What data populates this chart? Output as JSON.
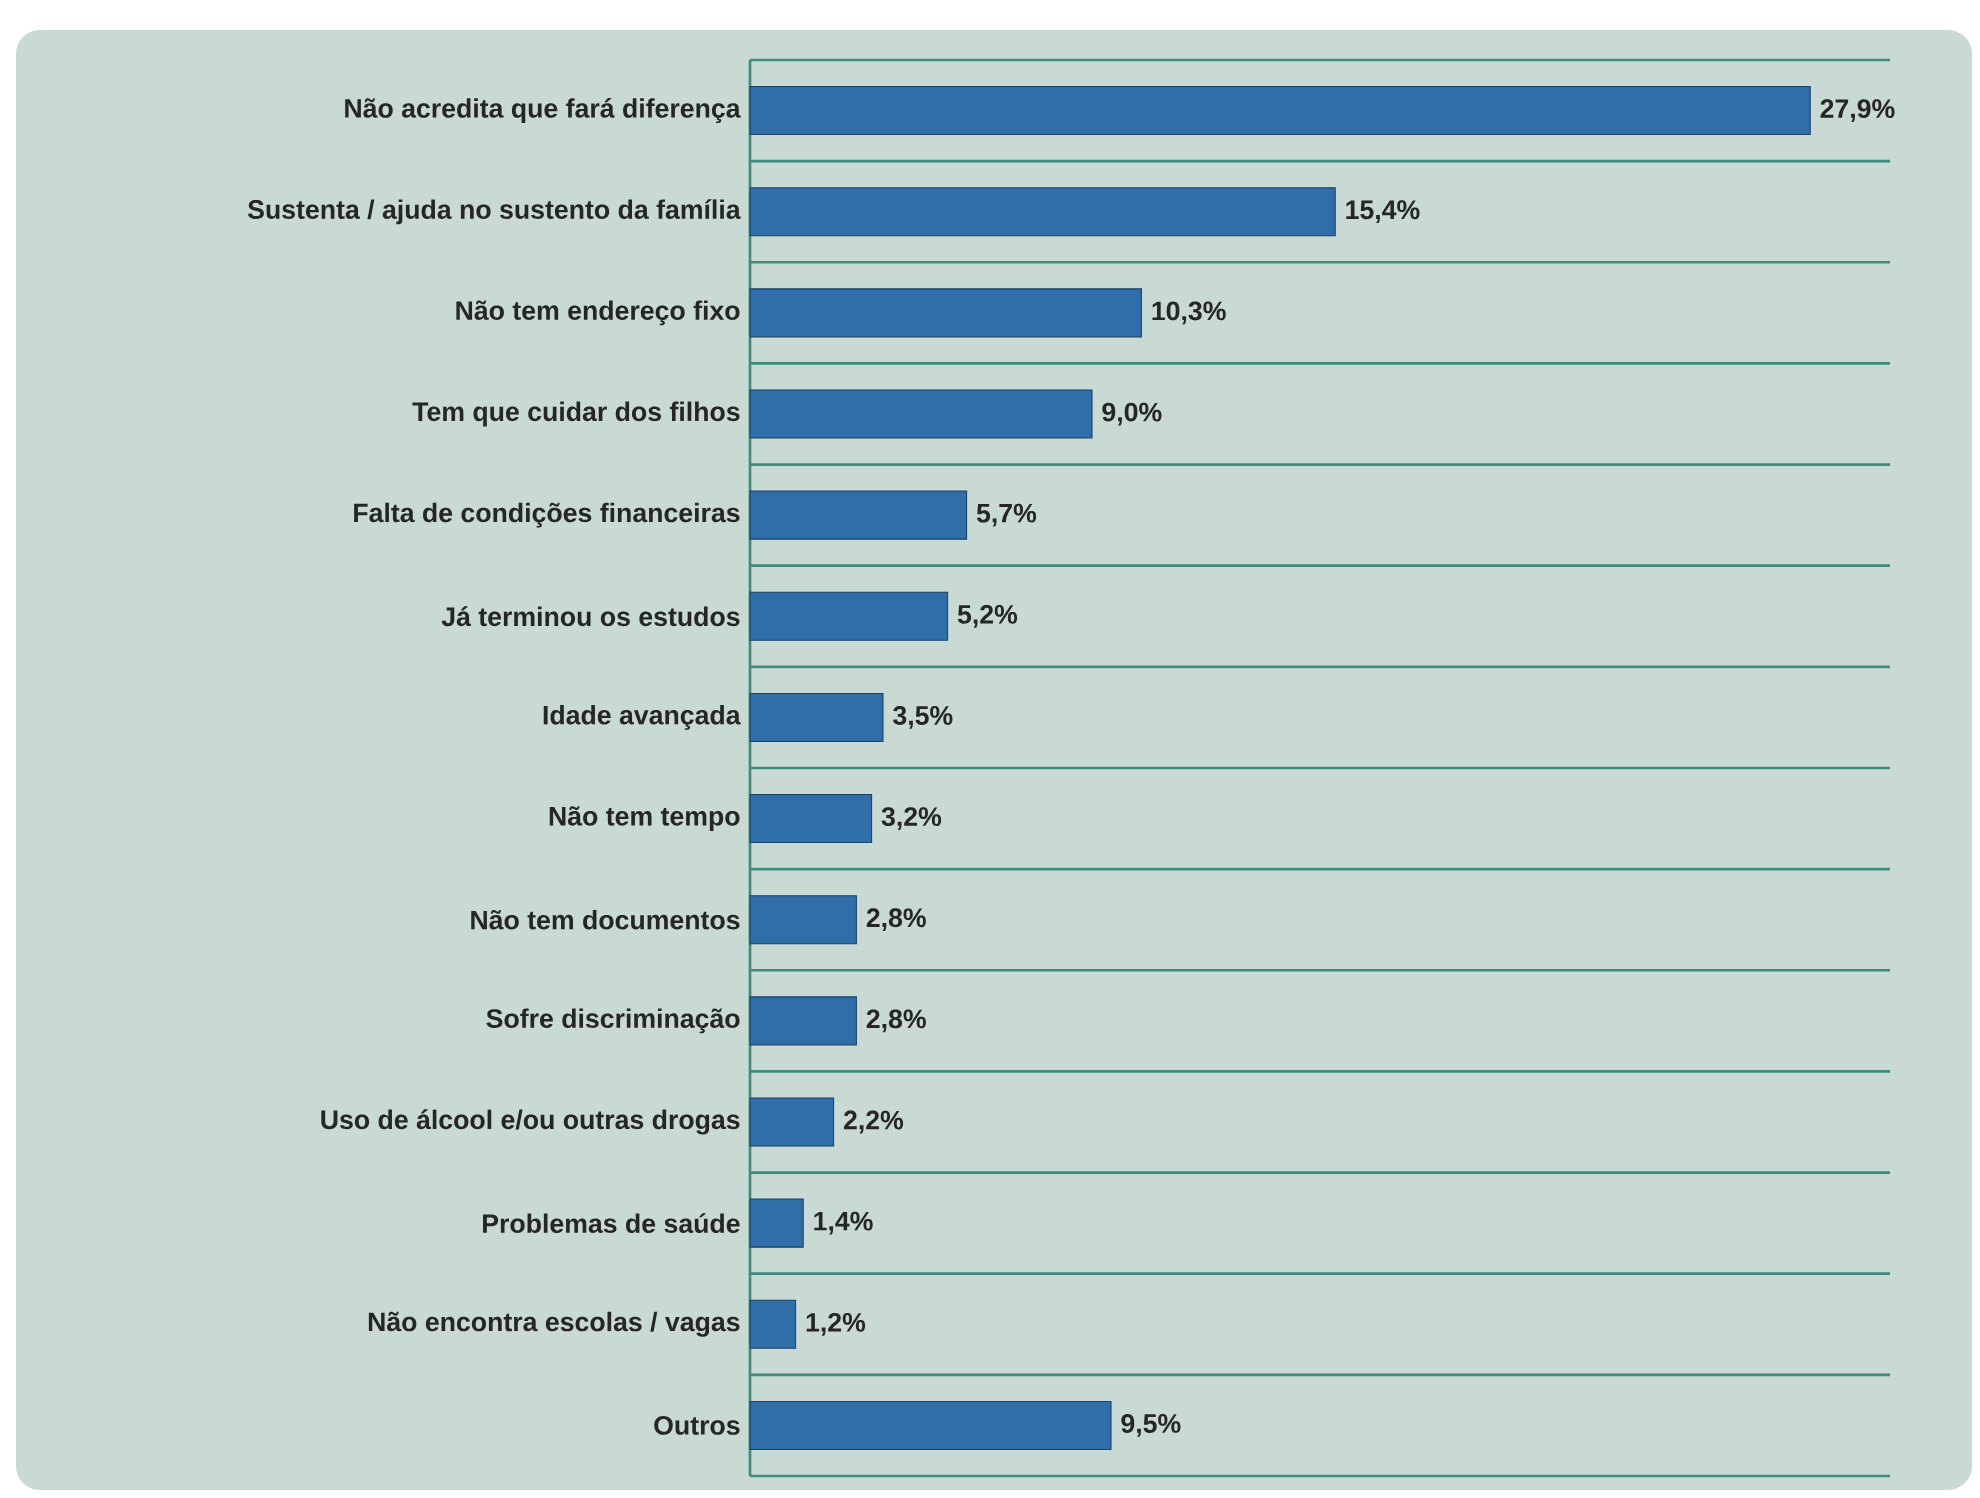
{
  "chart_data": {
    "type": "bar",
    "orientation": "horizontal",
    "categories": [
      "Não acredita que fará diferença",
      "Sustenta / ajuda no sustento da família",
      "Não tem endereço fixo",
      "Tem que cuidar dos filhos",
      "Falta de condições financeiras",
      "Já terminou os estudos",
      "Idade avançada",
      "Não tem tempo",
      "Não tem documentos",
      "Sofre discriminação",
      "Uso de álcool e/ou outras drogas",
      "Problemas de saúde",
      "Não encontra escolas / vagas",
      "Outros"
    ],
    "values": [
      27.9,
      15.4,
      10.3,
      9.0,
      5.7,
      5.2,
      3.5,
      3.2,
      2.8,
      2.8,
      2.2,
      1.4,
      1.2,
      9.5
    ],
    "value_labels": [
      "27,9%",
      "15,4%",
      "10,3%",
      "9,0%",
      "5,7%",
      "5,2%",
      "3,5%",
      "3,2%",
      "2,8%",
      "2,8%",
      "2,2%",
      "1,4%",
      "1,2%",
      "9,5%"
    ],
    "color": "#2f6ea8",
    "xlim": [
      0,
      30
    ],
    "tick_labels": "y",
    "grid": "y"
  }
}
